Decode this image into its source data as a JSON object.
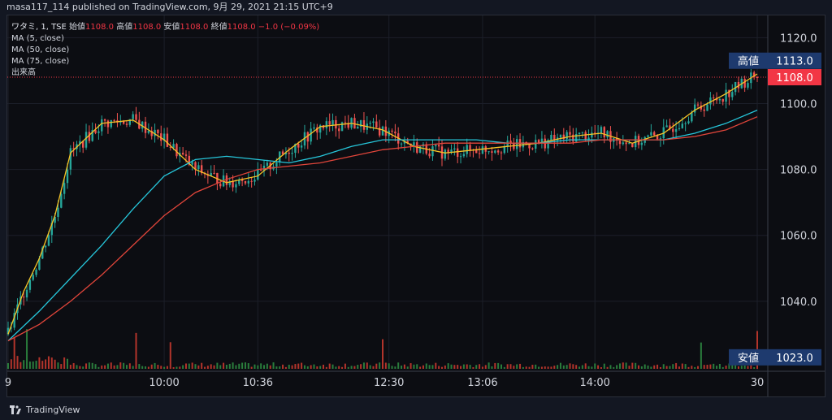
{
  "header": {
    "publisher": "masa117_114 published on TradingView.com, 9月 29, 2021 21:15 UTC+9"
  },
  "legend": {
    "symbol": "ワタミ, 1, TSE",
    "open_label": "始値",
    "open": "1108.0",
    "high_label": "高値",
    "high": "1108.0",
    "low_label": "安値",
    "low": "1108.0",
    "close_label": "終値",
    "close": "1108.0",
    "change": "−1.0 (−0.09%)",
    "ma5": "MA (5, close)",
    "ma50": "MA (50, close)",
    "ma75": "MA (75, close)",
    "volume": "出来高"
  },
  "price_tags": {
    "high_label": "高値",
    "high_value": "1113.0",
    "last_value": "1108.0",
    "low_label": "安値",
    "low_value": "1023.0"
  },
  "brand": {
    "name": "TradingView"
  },
  "colors": {
    "up": "#26a69a",
    "down": "#ef5350",
    "ma5": "#f7c325",
    "ma50": "#26c6da",
    "ma75": "#e0453a",
    "last": "#f23645",
    "tag_bg": "#1e3a6e",
    "vol_up": "#2a7d3c",
    "vol_down": "#b3342b"
  },
  "chart_data": {
    "type": "line",
    "title": "",
    "xlabel": "",
    "ylabel": "",
    "ylim": [
      1020,
      1126
    ],
    "yticks": [
      "1120.0",
      "1100.0",
      "1080.0",
      "1060.0",
      "1040.0"
    ],
    "ytick_values": [
      1120,
      1100,
      1080,
      1060,
      1040
    ],
    "xticks": [
      "9",
      "10:00",
      "10:36",
      "12:30",
      "13:06",
      "14:00",
      "30"
    ],
    "xtick_index": [
      0,
      50,
      80,
      122,
      152,
      188,
      240
    ],
    "last_price": 1108,
    "high": 1113,
    "low": 1023,
    "series": [
      {
        "name": "MA (5, close)",
        "x": [
          0,
          5,
          10,
          15,
          20,
          30,
          40,
          50,
          60,
          70,
          80,
          90,
          100,
          110,
          120,
          130,
          140,
          150,
          160,
          170,
          180,
          190,
          200,
          210,
          220,
          230,
          240
        ],
        "values": [
          1030,
          1043,
          1053,
          1066,
          1085,
          1094,
          1095,
          1089,
          1080,
          1076,
          1078,
          1086,
          1093,
          1094,
          1092,
          1087,
          1085,
          1086,
          1087,
          1088,
          1090,
          1091,
          1088,
          1091,
          1098,
          1103,
          1109
        ]
      },
      {
        "name": "MA (50, close)",
        "x": [
          0,
          10,
          20,
          30,
          40,
          50,
          60,
          70,
          80,
          90,
          100,
          110,
          120,
          130,
          140,
          150,
          160,
          170,
          180,
          190,
          200,
          210,
          220,
          230,
          240
        ],
        "values": [
          1028,
          1037,
          1047,
          1057,
          1068,
          1078,
          1083,
          1084,
          1083,
          1082,
          1084,
          1087,
          1089,
          1089,
          1089,
          1089,
          1088,
          1088,
          1089,
          1089,
          1089,
          1089,
          1091,
          1094,
          1098
        ]
      },
      {
        "name": "MA (75, close)",
        "x": [
          0,
          10,
          20,
          30,
          40,
          50,
          60,
          70,
          80,
          90,
          100,
          110,
          120,
          130,
          140,
          150,
          160,
          170,
          180,
          190,
          200,
          210,
          220,
          230,
          240
        ],
        "values": [
          1028,
          1033,
          1040,
          1048,
          1057,
          1066,
          1073,
          1077,
          1080,
          1081,
          1082,
          1084,
          1086,
          1087,
          1088,
          1088,
          1088,
          1088,
          1088,
          1089,
          1089,
          1089,
          1090,
          1092,
          1096
        ]
      }
    ]
  }
}
